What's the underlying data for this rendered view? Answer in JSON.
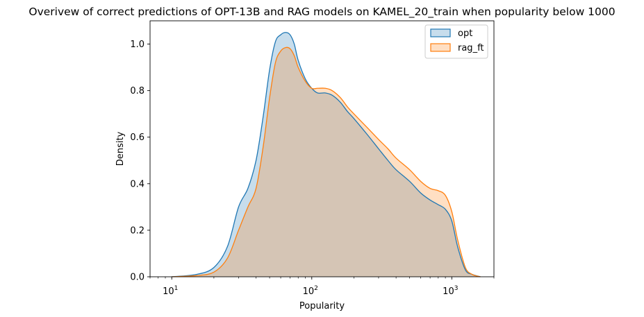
{
  "chart_data": {
    "type": "area",
    "title": "Overivew of correct predictions of OPT-13B and RAG models on KAMEL_20_train when popularity below 1000",
    "xlabel": "Popularity",
    "ylabel": "Density",
    "x_scale": "log",
    "xlim": [
      7,
      2000
    ],
    "ylim": [
      0,
      1.1
    ],
    "x_ticks": [
      {
        "value": 10,
        "base": "10",
        "exp": "1"
      },
      {
        "value": 100,
        "base": "10",
        "exp": "2"
      },
      {
        "value": 1000,
        "base": "10",
        "exp": "3"
      }
    ],
    "y_ticks": [
      {
        "value": 0.0,
        "label": "0.0"
      },
      {
        "value": 0.2,
        "label": "0.2"
      },
      {
        "value": 0.4,
        "label": "0.4"
      },
      {
        "value": 0.6,
        "label": "0.6"
      },
      {
        "value": 0.8,
        "label": "0.8"
      },
      {
        "value": 1.0,
        "label": "1.0"
      }
    ],
    "grid": false,
    "legend_position": "top-right",
    "series": [
      {
        "name": "opt",
        "color": "#1f77b4",
        "x": [
          10,
          15,
          20,
          25,
          30,
          35,
          40,
          45,
          50,
          55,
          60,
          65,
          70,
          75,
          80,
          90,
          100,
          110,
          125,
          140,
          160,
          180,
          200,
          250,
          300,
          350,
          400,
          500,
          600,
          700,
          800,
          900,
          1000,
          1100,
          1250,
          1400,
          1600
        ],
        "y": [
          0.0,
          0.01,
          0.04,
          0.13,
          0.3,
          0.38,
          0.5,
          0.69,
          0.89,
          1.01,
          1.04,
          1.05,
          1.04,
          1.0,
          0.93,
          0.85,
          0.81,
          0.79,
          0.79,
          0.78,
          0.75,
          0.71,
          0.68,
          0.61,
          0.55,
          0.5,
          0.46,
          0.41,
          0.36,
          0.33,
          0.31,
          0.29,
          0.24,
          0.13,
          0.03,
          0.01,
          0.0
        ]
      },
      {
        "name": "rag_ft",
        "color": "#ff7f0e",
        "x": [
          10,
          15,
          20,
          25,
          30,
          35,
          40,
          45,
          50,
          55,
          60,
          65,
          70,
          75,
          80,
          90,
          100,
          110,
          125,
          140,
          160,
          180,
          200,
          250,
          300,
          350,
          400,
          500,
          600,
          700,
          800,
          900,
          1000,
          1100,
          1250,
          1400,
          1600
        ],
        "y": [
          0.0,
          0.005,
          0.02,
          0.08,
          0.2,
          0.3,
          0.38,
          0.56,
          0.77,
          0.92,
          0.97,
          0.985,
          0.98,
          0.95,
          0.9,
          0.84,
          0.81,
          0.81,
          0.81,
          0.8,
          0.77,
          0.73,
          0.7,
          0.64,
          0.59,
          0.55,
          0.51,
          0.46,
          0.41,
          0.38,
          0.37,
          0.35,
          0.28,
          0.16,
          0.04,
          0.01,
          0.0
        ]
      }
    ]
  }
}
